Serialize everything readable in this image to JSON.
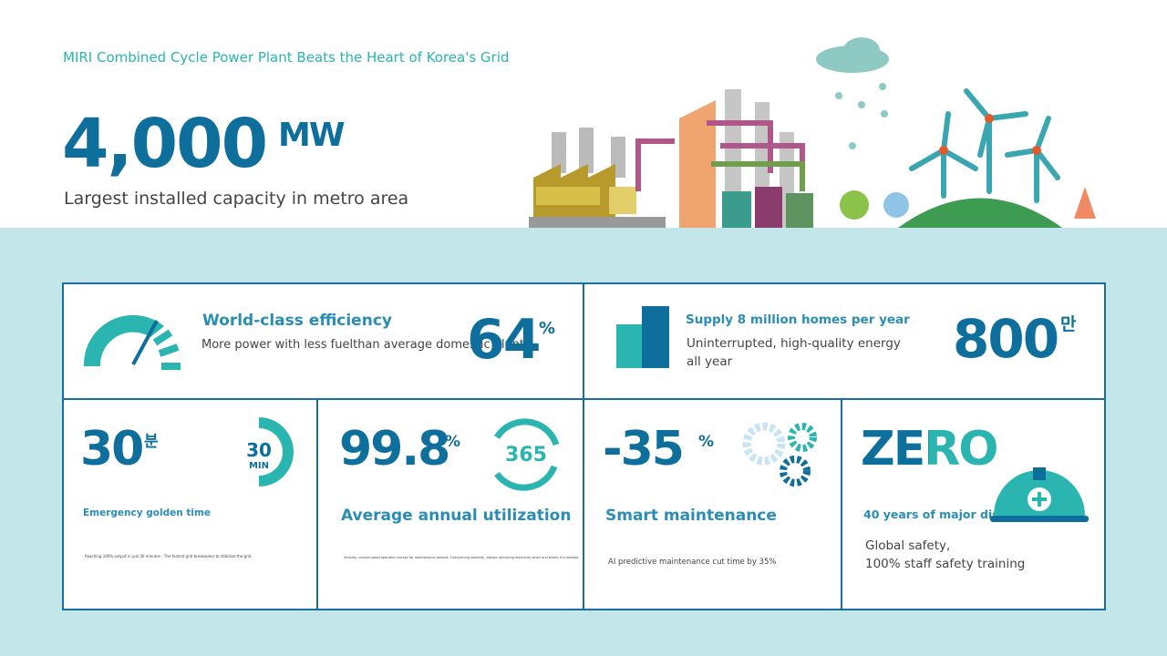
{
  "header": {
    "subtitle": "MIRI Combined Cycle Power Plant Beats the Heart of Korea's Grid",
    "value": "4,000",
    "unit": "MW",
    "caption": "Largest installed capacity in metro area"
  },
  "cards": [
    {
      "title": "World-class efficiency",
      "value": "64",
      "unit": "%",
      "description": [
        "More power with less fuelthan average domestic plants"
      ]
    },
    {
      "title": "Supply 8 million homes per year",
      "value": "800",
      "unit": "만",
      "description": [
        "Uninterrupted, high-quality energy",
        "all year"
      ]
    },
    {
      "title": "Emergency golden time",
      "value": "30",
      "unit": "분",
      "icon_text": [
        "30",
        "MIN"
      ],
      "description": [
        "Reaching 100% output in just 30 minutes - The fastest grid breakwater to stabilize the grid."
      ]
    },
    {
      "title": "Average annual utilization",
      "value": "99.8",
      "unit": "%",
      "icon_text": [
        "365"
      ],
      "description": [
        "Virtually uninterrupted operation except for maintenance periods. Overcoming volatility, always delivering electricity when and where it is needed."
      ]
    },
    {
      "title": "Smart maintenance",
      "value": "-35",
      "unit": "%",
      "description": [
        "AI predictive maintenance cut time by 35%"
      ]
    },
    {
      "title": "40 years of major disasters",
      "value": "ZERO",
      "description": [
        "Global safety,",
        "100% staff safety training"
      ]
    }
  ]
}
